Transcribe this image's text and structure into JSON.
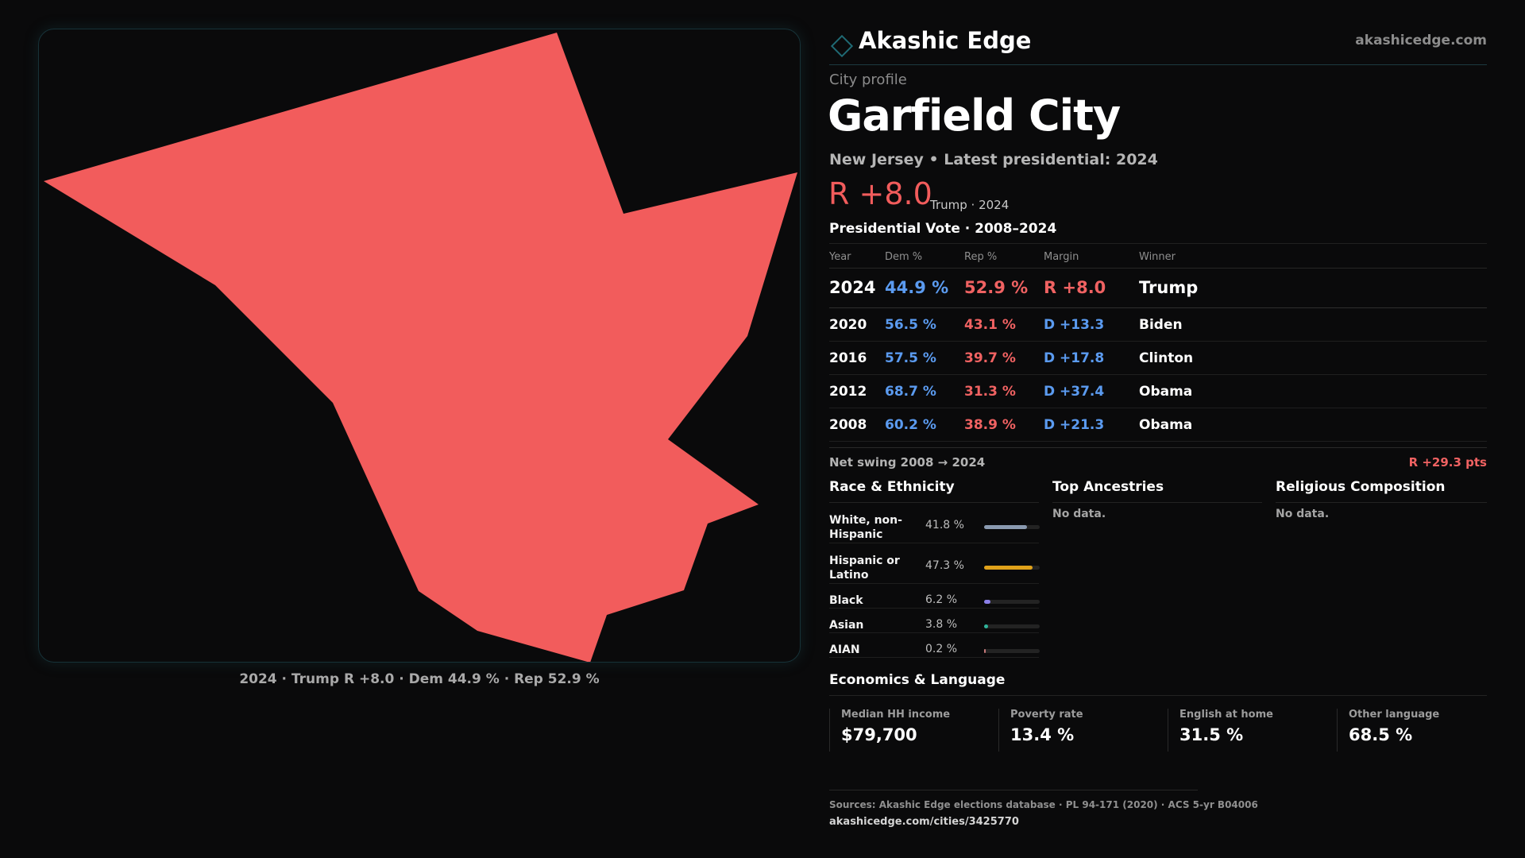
{
  "brand": {
    "name": "Akashic Edge",
    "url": "akashicedge.com",
    "accent_color": "#1f6a74"
  },
  "profile": {
    "kicker": "City profile",
    "title": "Garfield City",
    "subtitle": "New Jersey • Latest presidential: 2024",
    "headline_margin": "R +8.0",
    "headline_note": "Trump · 2024"
  },
  "map": {
    "fill_color": "#f25c5c",
    "caption": "2024 · Trump R +8.0 · Dem 44.9 % · Rep 52.9 %"
  },
  "vote_table": {
    "title": "Presidential Vote · 2008–2024",
    "columns": [
      "Year",
      "Dem %",
      "Rep %",
      "Margin",
      "Winner"
    ],
    "rows": [
      {
        "year": "2024",
        "dem": "44.9 %",
        "rep": "52.9 %",
        "margin": "R +8.0",
        "party": "R",
        "winner": "Trump"
      },
      {
        "year": "2020",
        "dem": "56.5 %",
        "rep": "43.1 %",
        "margin": "D +13.3",
        "party": "D",
        "winner": "Biden"
      },
      {
        "year": "2016",
        "dem": "57.5 %",
        "rep": "39.7 %",
        "margin": "D +17.8",
        "party": "D",
        "winner": "Clinton"
      },
      {
        "year": "2012",
        "dem": "68.7 %",
        "rep": "31.3 %",
        "margin": "D +37.4",
        "party": "D",
        "winner": "Obama"
      },
      {
        "year": "2008",
        "dem": "60.2 %",
        "rep": "38.9 %",
        "margin": "D +21.3",
        "party": "D",
        "winner": "Obama"
      }
    ],
    "swing_label": "Net swing 2008 → 2024",
    "swing_value": "R +29.3 pts"
  },
  "race": {
    "title": "Race & Ethnicity",
    "items": [
      {
        "label": "White, non-Hispanic",
        "value": "41.8 %",
        "share": 0.418,
        "color": "#8a9ab0"
      },
      {
        "label": "Hispanic or Latino",
        "value": "47.3 %",
        "share": 0.473,
        "color": "#e0a21a"
      },
      {
        "label": "Black",
        "value": "6.2 %",
        "share": 0.062,
        "color": "#8b7fe8"
      },
      {
        "label": "Asian",
        "value": "3.8 %",
        "share": 0.038,
        "color": "#2fb39a"
      },
      {
        "label": "AIAN",
        "value": "0.2 %",
        "share": 0.002,
        "color": "#c77a7a"
      }
    ]
  },
  "ancestries": {
    "title": "Top Ancestries",
    "empty": "No data."
  },
  "religion": {
    "title": "Religious Composition",
    "empty": "No data."
  },
  "economics": {
    "title": "Economics & Language",
    "cards": [
      {
        "label": "Median HH income",
        "value": "$79,700"
      },
      {
        "label": "Poverty rate",
        "value": "13.4 %"
      },
      {
        "label": "English at home",
        "value": "31.5 %"
      },
      {
        "label": "Other language",
        "value": "68.5 %"
      }
    ]
  },
  "footer": {
    "sources": "Sources: Akashic Edge elections database · PL 94-171 (2020) · ACS 5-yr B04006",
    "url": "akashicedge.com/cities/3425770"
  }
}
